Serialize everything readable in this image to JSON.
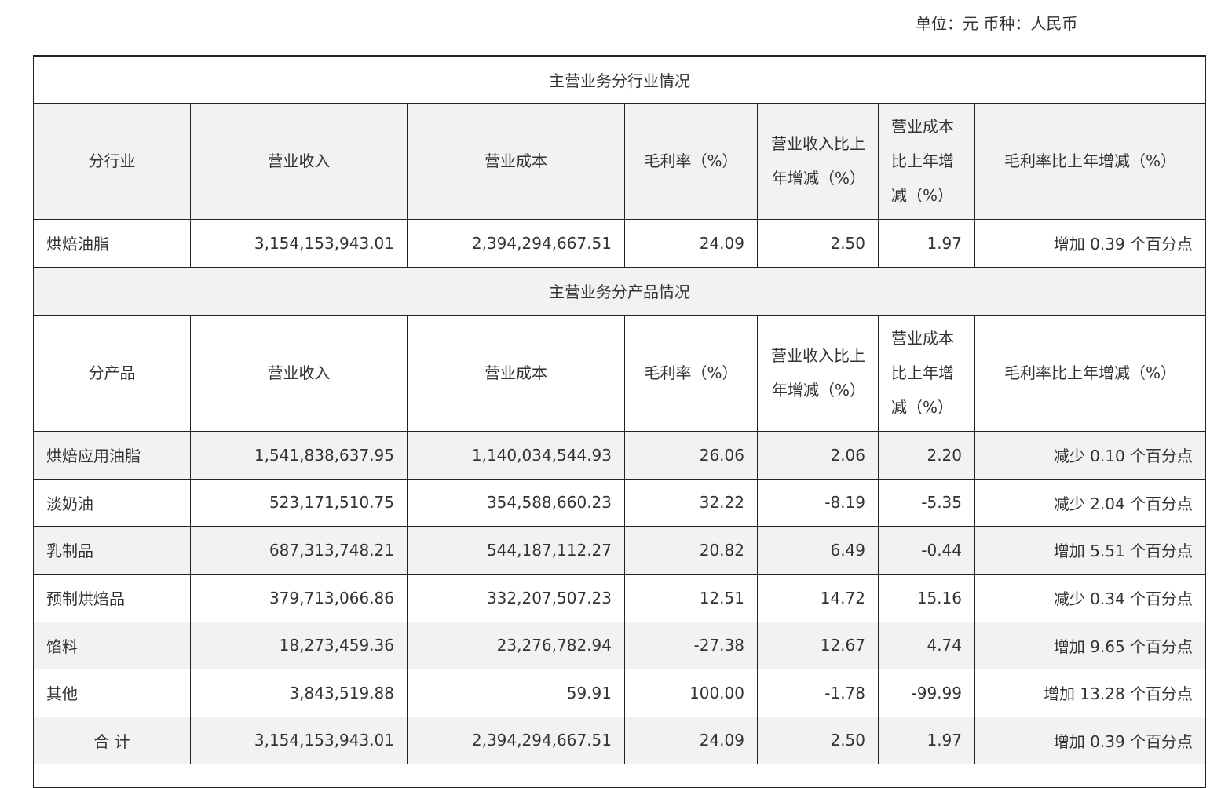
{
  "unit_line": "单位：元  币种：人民币",
  "industry_section": {
    "title": "主营业务分行业情况",
    "headers": {
      "category": "分行业",
      "revenue": "营业收入",
      "cost": "营业成本",
      "margin": "毛利率（%）",
      "revenue_change": "营业收入比上年增减（%）",
      "cost_change": "营业成本比上年增减（%）",
      "margin_change": "毛利率比上年增减（%）"
    },
    "rows": [
      {
        "name": "烘焙油脂",
        "revenue": "3,154,153,943.01",
        "cost": "2,394,294,667.51",
        "margin": "24.09",
        "revenue_change": "2.50",
        "cost_change": "1.97",
        "margin_change": "增加 0.39 个百分点"
      }
    ]
  },
  "product_section": {
    "title": "主营业务分产品情况",
    "headers": {
      "category": "分产品",
      "revenue": "营业收入",
      "cost": "营业成本",
      "margin": "毛利率（%）",
      "revenue_change": "营业收入比上年增减（%）",
      "cost_change": "营业成本比上年增减（%）",
      "margin_change": "毛利率比上年增减（%）"
    },
    "rows": [
      {
        "name": "烘焙应用油脂",
        "revenue": "1,541,838,637.95",
        "cost": "1,140,034,544.93",
        "margin": "26.06",
        "revenue_change": "2.06",
        "cost_change": "2.20",
        "margin_change": "减少 0.10 个百分点"
      },
      {
        "name": "淡奶油",
        "revenue": "523,171,510.75",
        "cost": "354,588,660.23",
        "margin": "32.22",
        "revenue_change": "-8.19",
        "cost_change": "-5.35",
        "margin_change": "减少 2.04 个百分点"
      },
      {
        "name": "乳制品",
        "revenue": "687,313,748.21",
        "cost": "544,187,112.27",
        "margin": "20.82",
        "revenue_change": "6.49",
        "cost_change": "-0.44",
        "margin_change": "增加 5.51 个百分点"
      },
      {
        "name": "预制烘焙品",
        "revenue": "379,713,066.86",
        "cost": "332,207,507.23",
        "margin": "12.51",
        "revenue_change": "14.72",
        "cost_change": "15.16",
        "margin_change": "减少 0.34 个百分点"
      },
      {
        "name": "馅料",
        "revenue": "18,273,459.36",
        "cost": "23,276,782.94",
        "margin": "-27.38",
        "revenue_change": "12.67",
        "cost_change": "4.74",
        "margin_change": "增加 9.65 个百分点"
      },
      {
        "name": "其他",
        "revenue": "3,843,519.88",
        "cost": "59.91",
        "margin": "100.00",
        "revenue_change": "-1.78",
        "cost_change": "-99.99",
        "margin_change": "增加 13.28 个百分点"
      }
    ],
    "total": {
      "name": "合 计",
      "revenue": "3,154,153,943.01",
      "cost": "2,394,294,667.51",
      "margin": "24.09",
      "revenue_change": "2.50",
      "cost_change": "1.97",
      "margin_change": "增加 0.39 个百分点"
    }
  }
}
